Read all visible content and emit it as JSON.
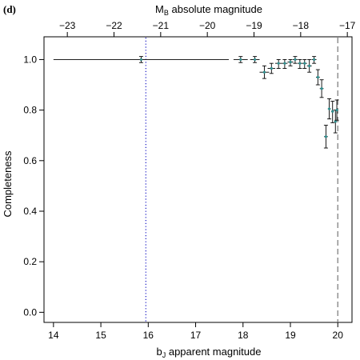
{
  "chart_data": {
    "type": "scatter",
    "panel_label": "(d)",
    "title": "",
    "xlabel": "b",
    "xlabel_sub": "J",
    "xlabel_rest": " apparent magnitude",
    "ylabel": "Completeness",
    "top_xlabel": "M",
    "top_xlabel_sub": "B",
    "top_xlabel_rest": " absolute magnitude",
    "xlim": [
      13.8,
      20.3
    ],
    "ylim": [
      -0.04,
      1.09
    ],
    "top_xlim": [
      -23.5,
      -16.9
    ],
    "x_ticks": [
      14,
      15,
      16,
      17,
      18,
      19,
      20
    ],
    "x_tick_labels": [
      "14",
      "15",
      "16",
      "17",
      "18",
      "19",
      "20"
    ],
    "y_ticks": [
      0.0,
      0.2,
      0.4,
      0.6,
      0.8,
      1.0
    ],
    "y_tick_labels": [
      "0.0",
      "0.2",
      "0.4",
      "0.6",
      "0.8",
      "1.0"
    ],
    "top_ticks": [
      -23,
      -22,
      -21,
      -20,
      -19,
      -18,
      -17
    ],
    "top_tick_labels": [
      "−23",
      "−22",
      "−21",
      "−20",
      "−19",
      "−18",
      "−17"
    ],
    "points": [
      {
        "x": 15.85,
        "y": 1.0,
        "xlo": 14.0,
        "xhi": 17.7,
        "ylo": 0.988,
        "yhi": 1.012
      },
      {
        "x": 17.95,
        "y": 1.0,
        "xlo": 17.8,
        "xhi": 18.1,
        "ylo": 0.988,
        "yhi": 1.012
      },
      {
        "x": 18.25,
        "y": 1.0,
        "xlo": 18.15,
        "xhi": 18.35,
        "ylo": 0.988,
        "yhi": 1.012
      },
      {
        "x": 18.45,
        "y": 0.95,
        "xlo": 18.35,
        "xhi": 18.55,
        "ylo": 0.925,
        "yhi": 0.975
      },
      {
        "x": 18.6,
        "y": 0.965,
        "xlo": 18.52,
        "xhi": 18.68,
        "ylo": 0.945,
        "yhi": 0.985
      },
      {
        "x": 18.75,
        "y": 0.985,
        "xlo": 18.68,
        "xhi": 18.82,
        "ylo": 0.965,
        "yhi": 1.0
      },
      {
        "x": 18.88,
        "y": 0.985,
        "xlo": 18.82,
        "xhi": 18.94,
        "ylo": 0.965,
        "yhi": 1.0
      },
      {
        "x": 19.0,
        "y": 0.99,
        "xlo": 18.94,
        "xhi": 19.06,
        "ylo": 0.975,
        "yhi": 1.0
      },
      {
        "x": 19.1,
        "y": 1.0,
        "xlo": 19.05,
        "xhi": 19.15,
        "ylo": 0.985,
        "yhi": 1.012
      },
      {
        "x": 19.2,
        "y": 0.985,
        "xlo": 19.15,
        "xhi": 19.25,
        "ylo": 0.965,
        "yhi": 1.0
      },
      {
        "x": 19.3,
        "y": 0.985,
        "xlo": 19.25,
        "xhi": 19.35,
        "ylo": 0.965,
        "yhi": 1.0
      },
      {
        "x": 19.4,
        "y": 0.975,
        "xlo": 19.35,
        "xhi": 19.45,
        "ylo": 0.95,
        "yhi": 1.0
      },
      {
        "x": 19.5,
        "y": 1.0,
        "xlo": 19.45,
        "xhi": 19.55,
        "ylo": 0.985,
        "yhi": 1.012
      },
      {
        "x": 19.58,
        "y": 0.93,
        "xlo": 19.54,
        "xhi": 19.62,
        "ylo": 0.9,
        "yhi": 0.96
      },
      {
        "x": 19.66,
        "y": 0.885,
        "xlo": 19.62,
        "xhi": 19.7,
        "ylo": 0.85,
        "yhi": 0.92
      },
      {
        "x": 19.75,
        "y": 0.695,
        "xlo": 19.71,
        "xhi": 19.79,
        "ylo": 0.65,
        "yhi": 0.74
      },
      {
        "x": 19.82,
        "y": 0.805,
        "xlo": 19.79,
        "xhi": 19.85,
        "ylo": 0.765,
        "yhi": 0.845
      },
      {
        "x": 19.89,
        "y": 0.795,
        "xlo": 19.86,
        "xhi": 19.92,
        "ylo": 0.75,
        "yhi": 0.835
      },
      {
        "x": 19.95,
        "y": 0.755,
        "xlo": 19.92,
        "xhi": 19.98,
        "ylo": 0.71,
        "yhi": 0.8
      },
      {
        "x": 19.98,
        "y": 0.8,
        "xlo": 19.96,
        "xhi": 20.0,
        "ylo": 0.76,
        "yhi": 0.84
      }
    ],
    "vlines": [
      {
        "x": 15.95,
        "style": "dotted",
        "color": "#3333cc"
      },
      {
        "x": 20.0,
        "style": "dashed",
        "color": "#808080"
      }
    ],
    "marker_color": "#2f8f8f",
    "errorbar_color": "#000000"
  }
}
